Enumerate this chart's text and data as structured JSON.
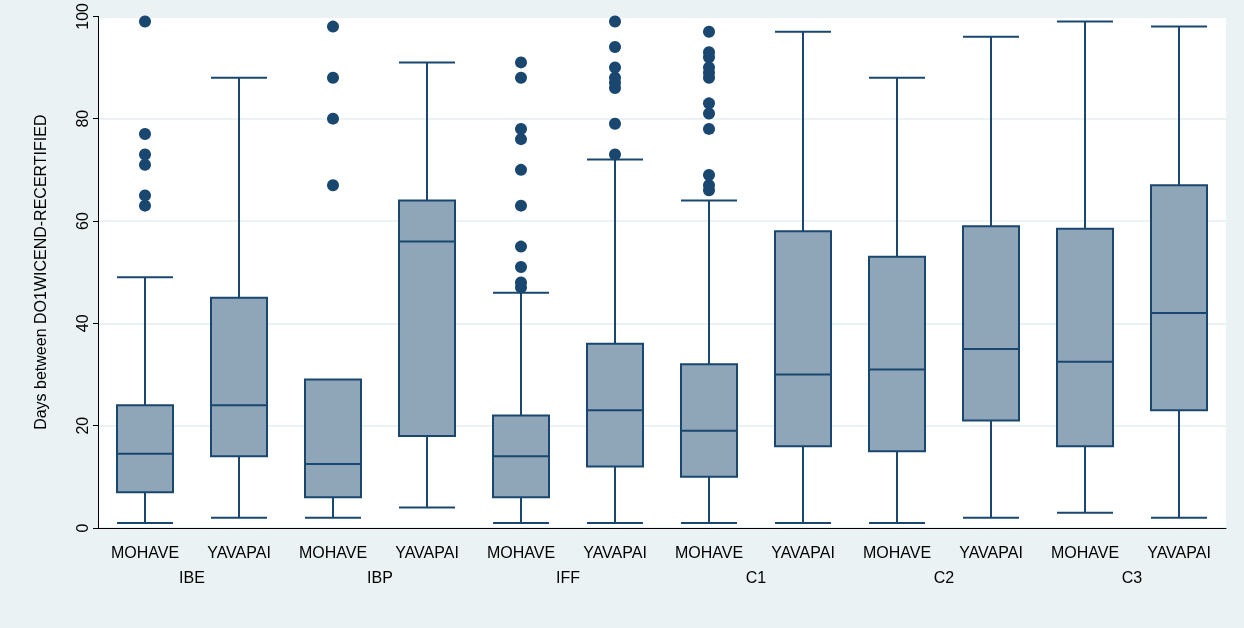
{
  "chart_data": {
    "type": "box",
    "ylabel": "Days between DO1WICEND-RECERTIFIED",
    "categories": [
      "MOHAVE",
      "YAVAPAI",
      "MOHAVE",
      "YAVAPAI",
      "MOHAVE",
      "YAVAPAI",
      "MOHAVE",
      "YAVAPAI",
      "MOHAVE",
      "YAVAPAI",
      "MOHAVE",
      "YAVAPAI"
    ],
    "annotations": [
      "IBE",
      "IBP",
      "IFF",
      "C1",
      "C2",
      "C3"
    ],
    "color": "#1a476f",
    "boxes": [
      {
        "low": 1,
        "q1": 7,
        "median": 14.5,
        "q3": 24,
        "high": 49,
        "outliers": [
          63,
          65,
          71,
          73,
          77,
          99
        ]
      },
      {
        "low": 2,
        "q1": 14,
        "median": 24,
        "q3": 45,
        "high": 88
      },
      {
        "low": 2,
        "q1": 6,
        "median": 12.5,
        "q3": 29,
        "high": 29,
        "outliers": [
          67,
          80,
          88,
          98
        ]
      },
      {
        "low": 4,
        "q1": 18,
        "median": 56,
        "q3": 64,
        "high": 91
      },
      {
        "low": 1,
        "q1": 6,
        "median": 14,
        "q3": 22,
        "high": 46,
        "outliers": [
          47,
          48,
          51,
          55,
          63,
          70,
          76,
          78,
          88,
          91
        ]
      },
      {
        "low": 1,
        "q1": 12,
        "median": 23,
        "q3": 36,
        "high": 72,
        "outliers": [
          73,
          79,
          86,
          87,
          88,
          90,
          94,
          99
        ]
      },
      {
        "low": 1,
        "q1": 10,
        "median": 19,
        "q3": 32,
        "high": 64,
        "outliers": [
          66,
          67,
          69,
          78,
          81,
          83,
          88,
          89,
          90,
          92,
          93,
          97
        ]
      },
      {
        "low": 1,
        "q1": 16,
        "median": 30,
        "q3": 58,
        "high": 97
      },
      {
        "low": 1,
        "q1": 15,
        "median": 31,
        "q3": 53,
        "high": 88
      },
      {
        "low": 2,
        "q1": 21,
        "median": 35,
        "q3": 59,
        "high": 96
      },
      {
        "low": 3,
        "q1": 16,
        "median": 32.5,
        "q3": 58.5,
        "high": 99
      },
      {
        "low": 2,
        "q1": 23,
        "median": 42,
        "q3": 67,
        "high": 98
      }
    ],
    "ylim": [
      0,
      100
    ],
    "yticks": [
      0,
      20,
      40,
      60,
      80,
      100
    ],
    "grid": "y"
  }
}
